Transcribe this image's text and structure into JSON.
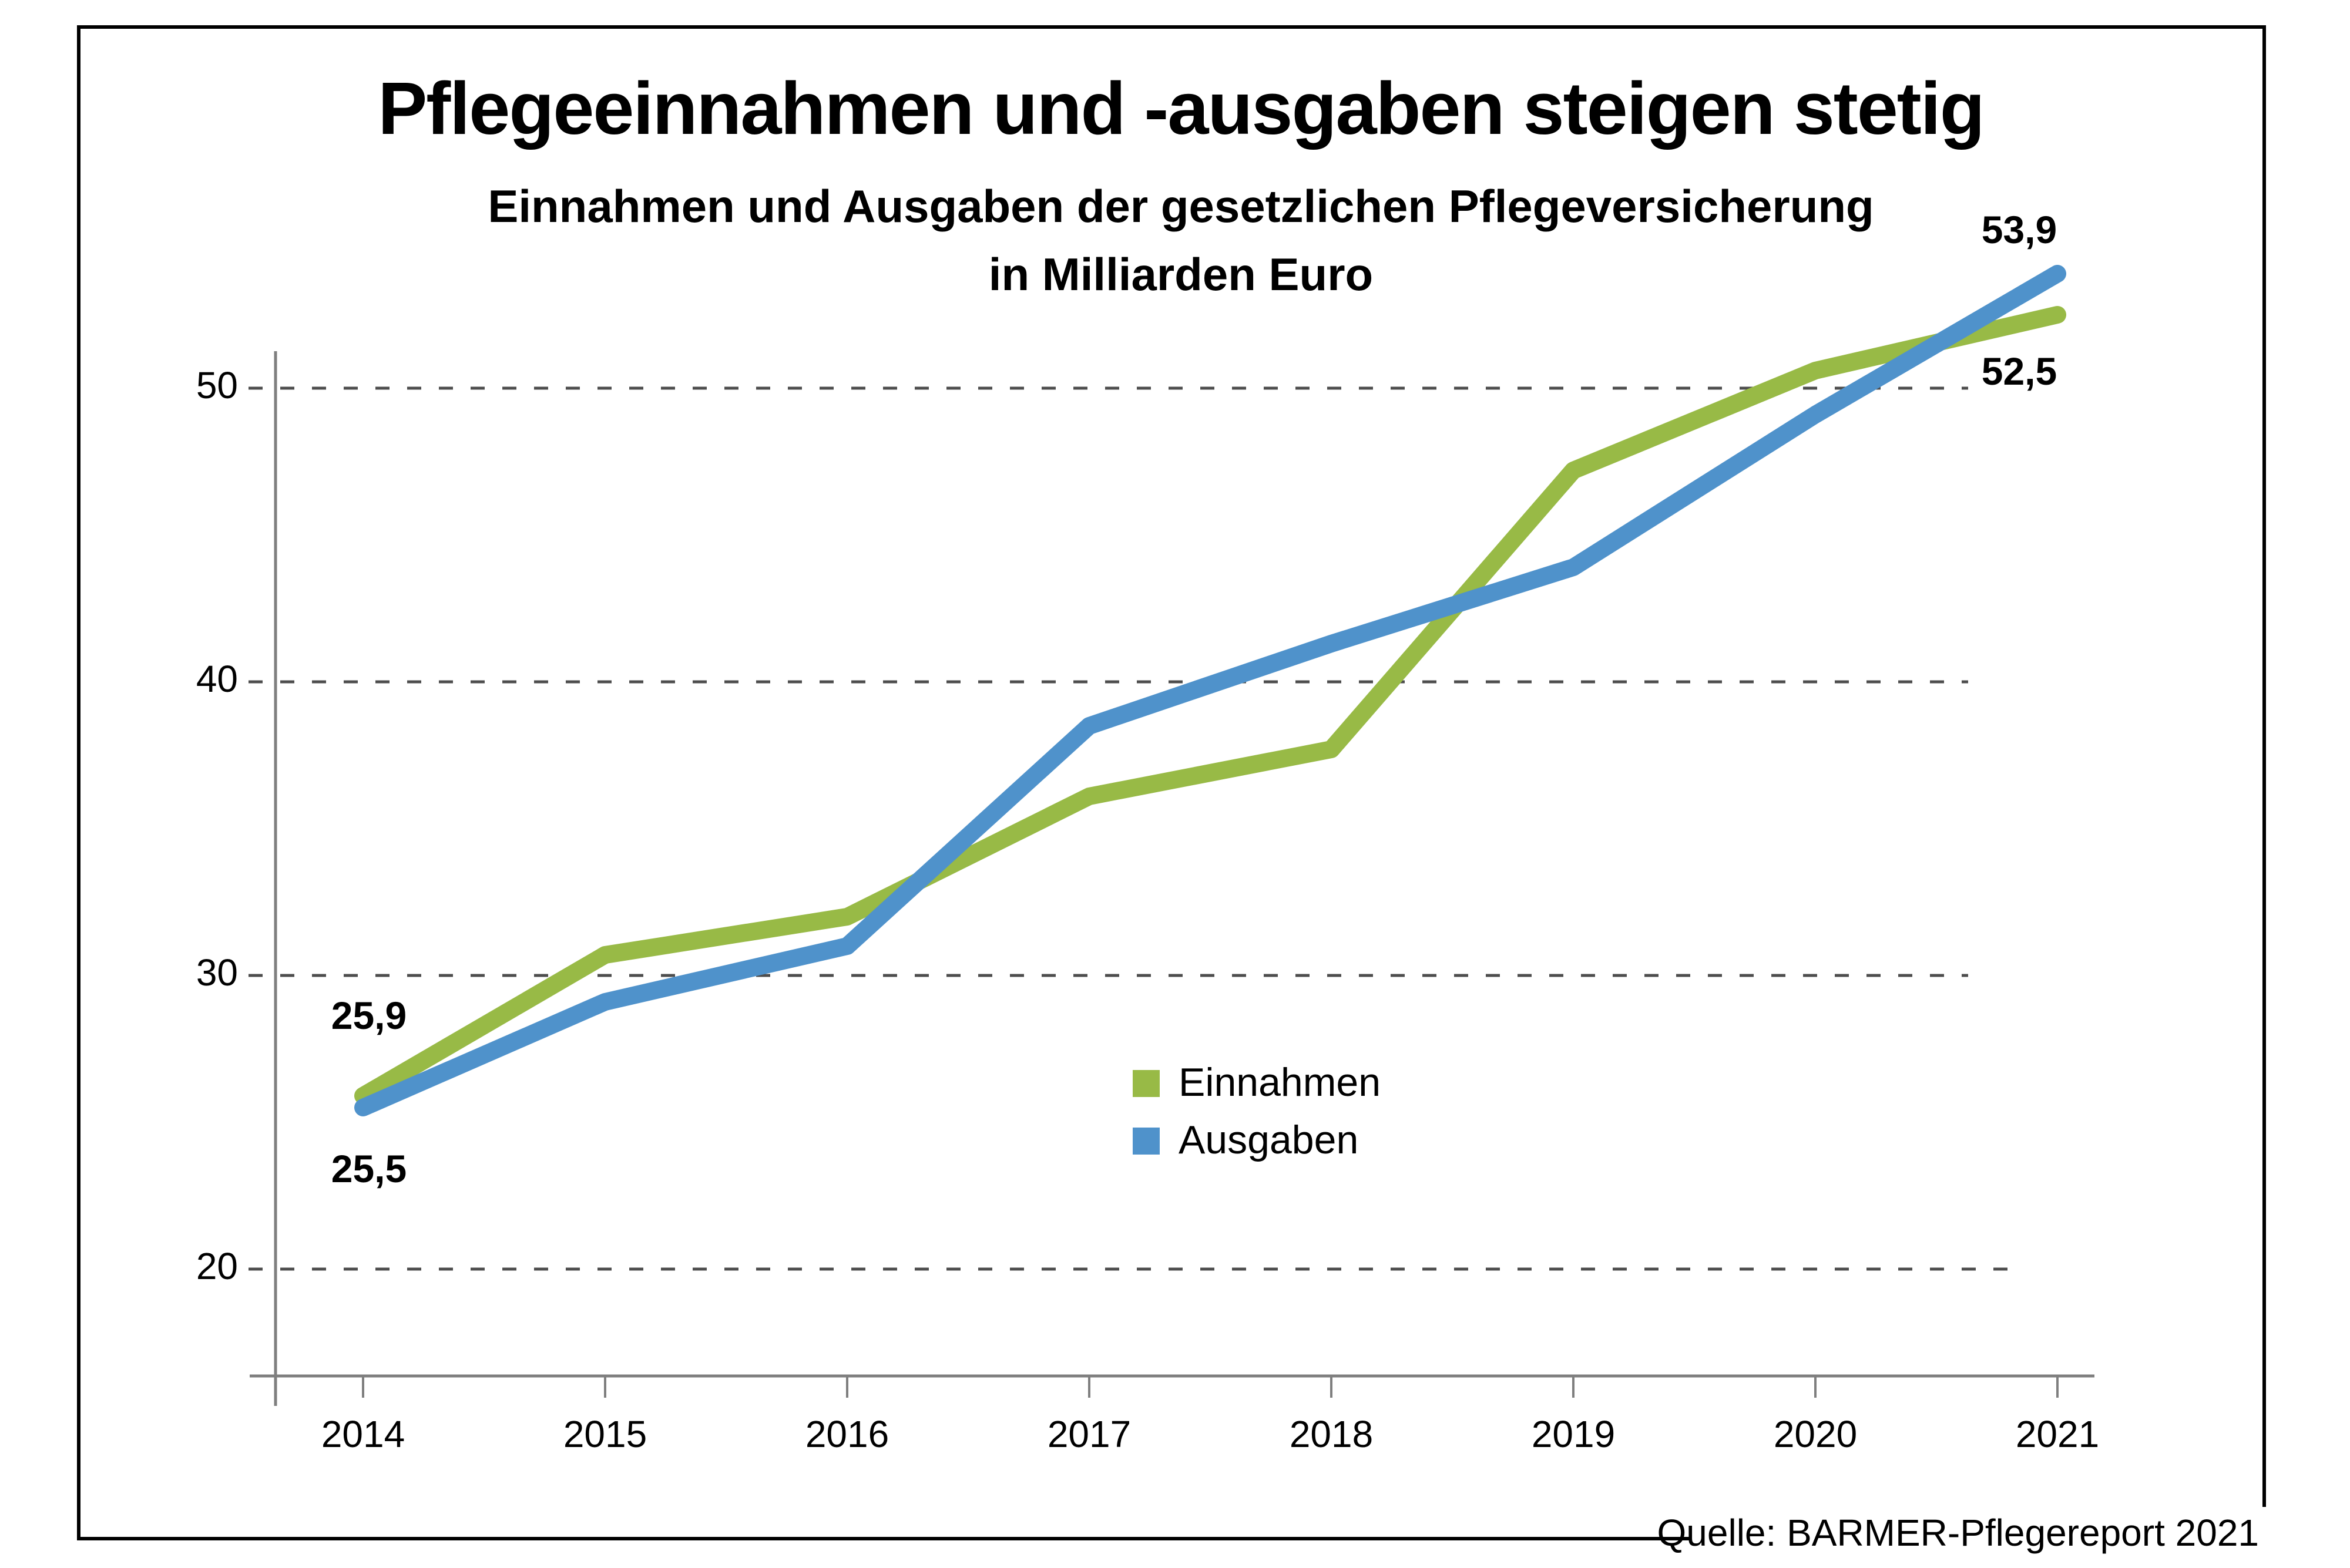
{
  "header": {
    "title": "Pflegeeinnahmen und -ausgaben steigen stetig",
    "subtitle_line1": "Einnahmen und Ausgaben der gesetzlichen Pflegeversicherung",
    "subtitle_line2": "in Milliarden Euro"
  },
  "source": {
    "label": "Quelle: BARMER-Pflegereport 2021"
  },
  "chart_data": {
    "type": "line",
    "x": [
      2014,
      2015,
      2016,
      2017,
      2018,
      2019,
      2020,
      2021
    ],
    "series": [
      {
        "name": "Einnahmen",
        "color": "#98ba46",
        "values": [
          25.9,
          30.7,
          32.0,
          36.1,
          37.7,
          47.2,
          50.6,
          52.5
        ],
        "start_label": "25,9",
        "end_label": "52,5"
      },
      {
        "name": "Ausgaben",
        "color": "#4f92cb",
        "values": [
          25.5,
          29.1,
          31.0,
          38.5,
          41.3,
          43.9,
          49.1,
          53.9
        ],
        "start_label": "25,5",
        "end_label": "53,9"
      }
    ],
    "y_gridlines": [
      20,
      30,
      40,
      50
    ],
    "ylim": [
      16,
      56
    ],
    "grid_style": "dashed",
    "legend_position": "middle-center",
    "axis_color": "#7f7f7f",
    "grid_color": "#4d4d4d",
    "frame_color": "#000000",
    "background_color": "#ffffff"
  }
}
